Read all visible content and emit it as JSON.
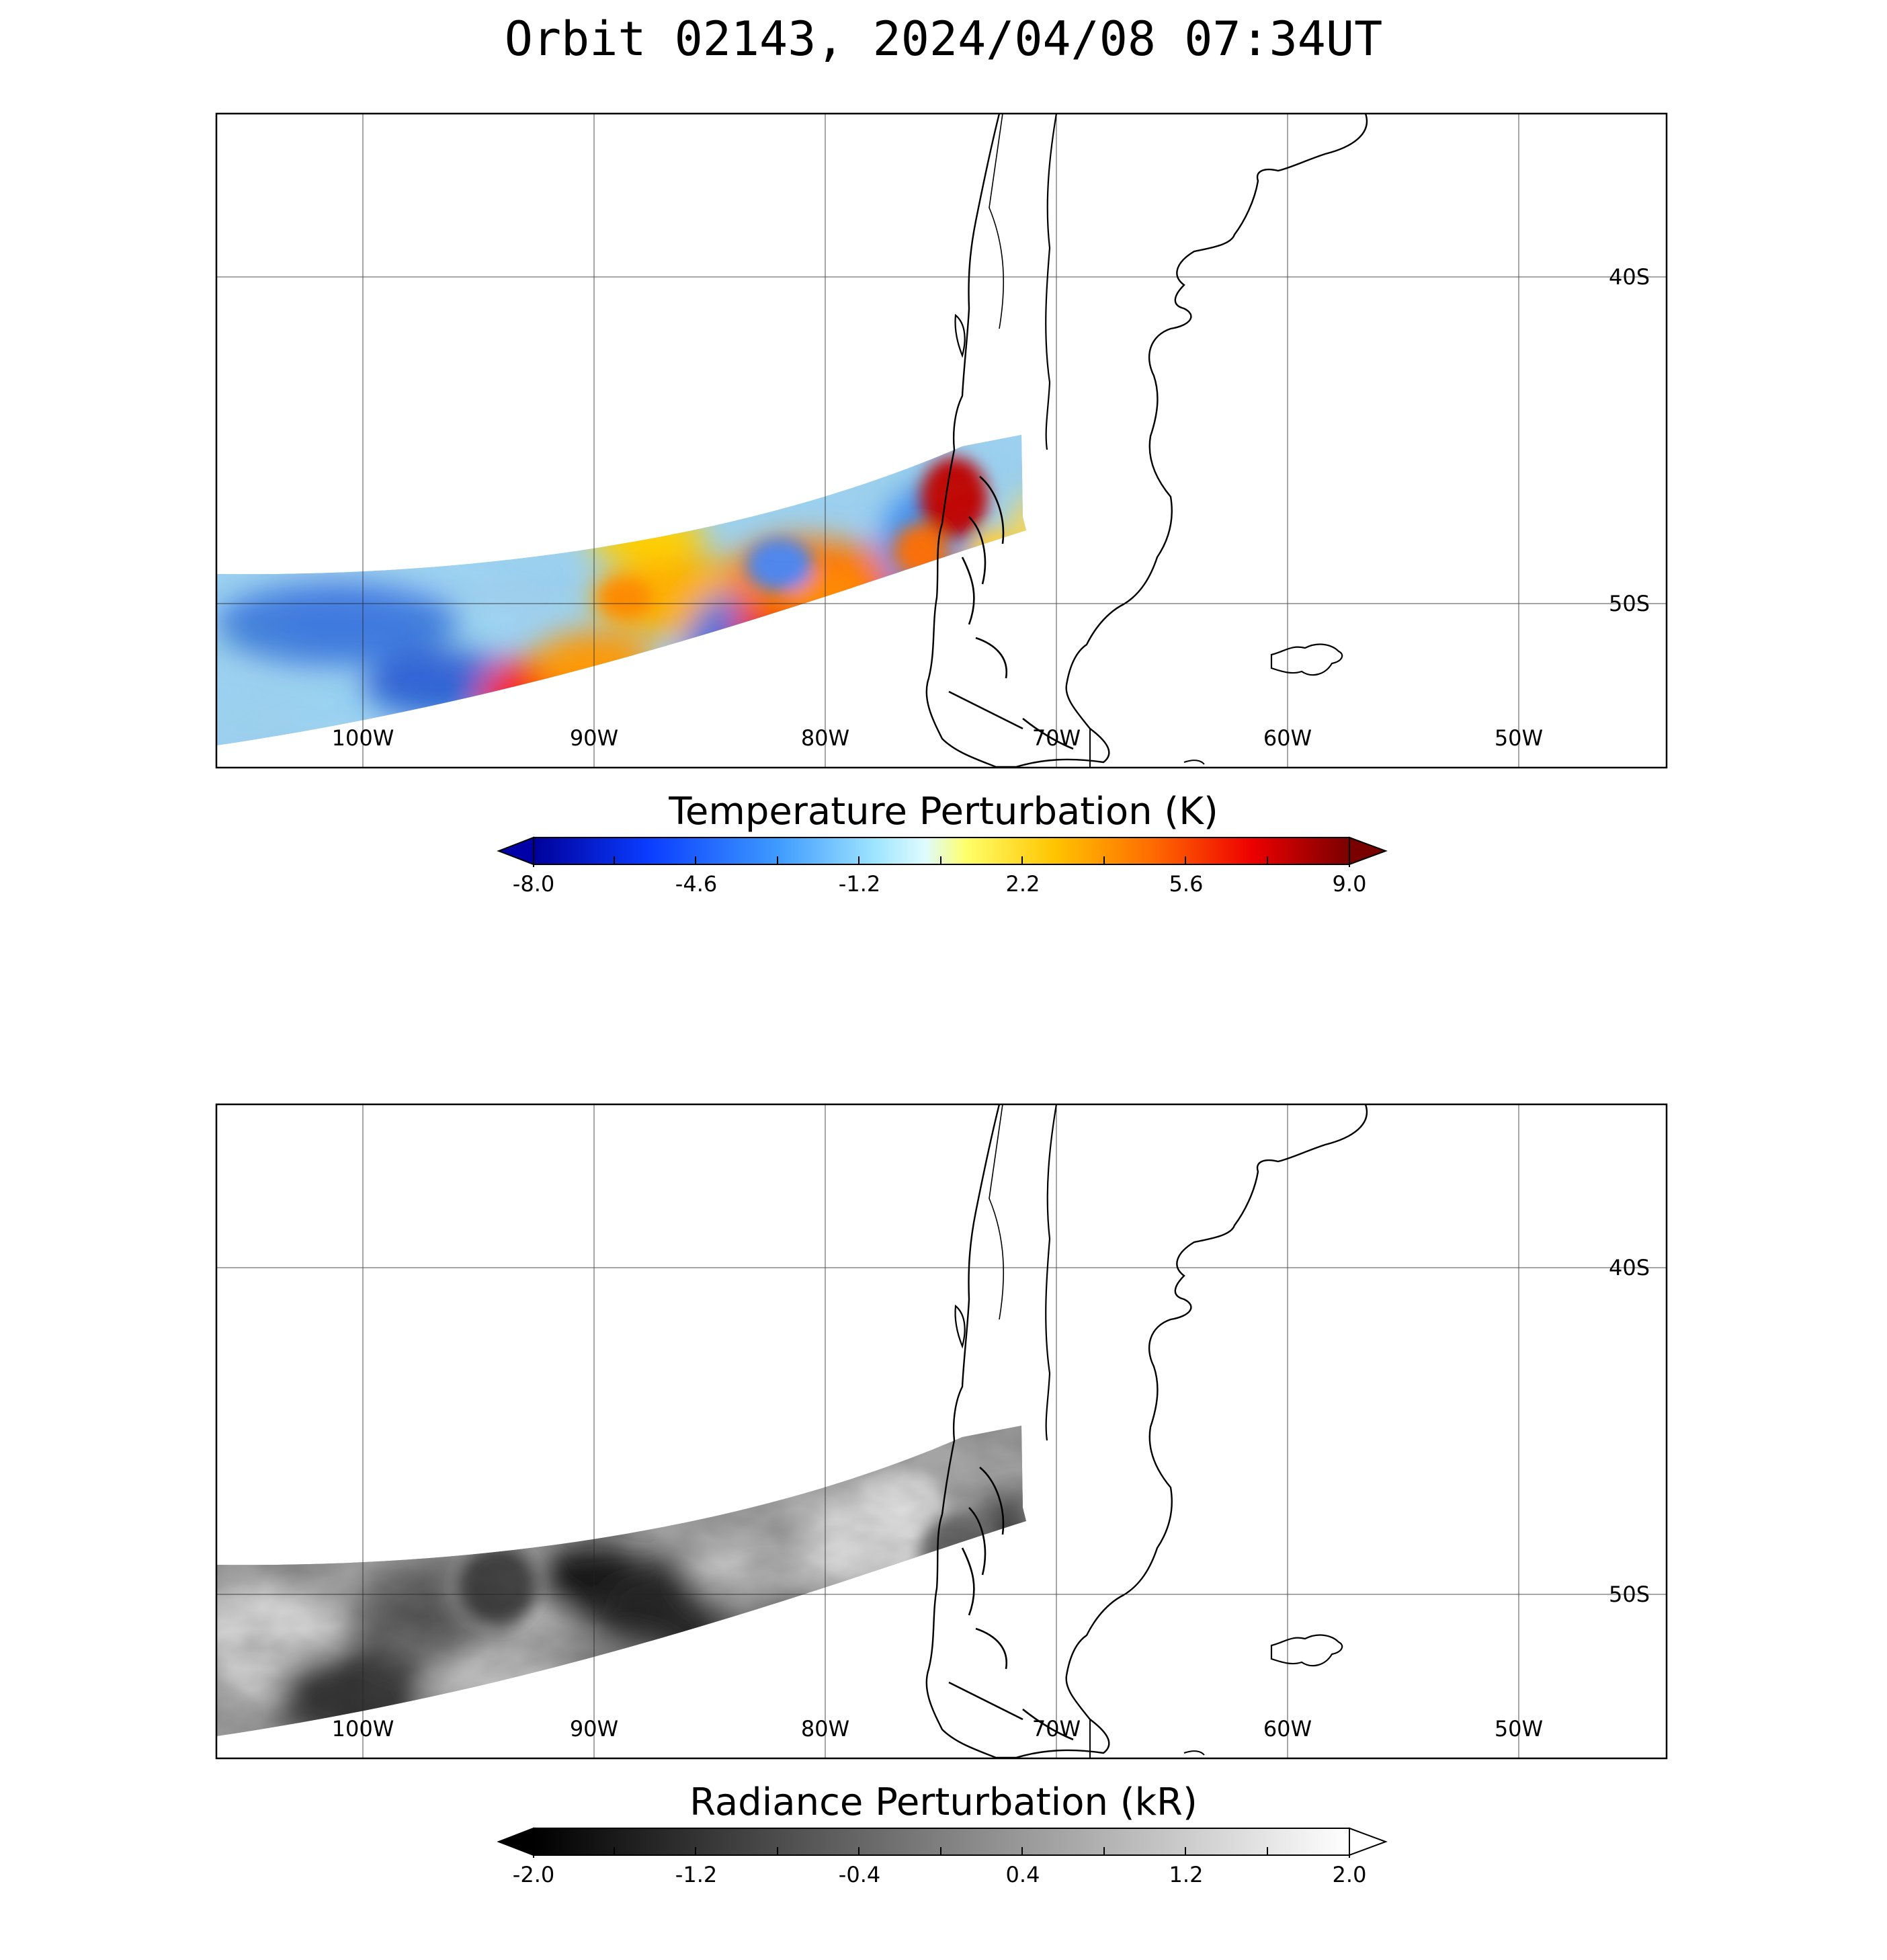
{
  "title": "Orbit 02143, 2024/04/08 07:34UT",
  "lon_ticks": [
    "100W",
    "90W",
    "80W",
    "70W",
    "60W",
    "50W"
  ],
  "lat_ticks": [
    "40S",
    "50S"
  ],
  "panels": [
    {
      "id": "temperature",
      "colorbar_label": "Temperature Perturbation (K)",
      "colorbar_ticks": [
        "-8.0",
        "-4.6",
        "-1.2",
        "2.2",
        "5.6",
        "9.0"
      ],
      "colormap": [
        "#00009a",
        "#0a3cff",
        "#3f9bff",
        "#9fe5ff",
        "#dffbff",
        "#ffff6a",
        "#ffc300",
        "#ff6a00",
        "#ee0000",
        "#7a0000"
      ]
    },
    {
      "id": "radiance",
      "colorbar_label": "Radiance Perturbation (kR)",
      "colorbar_ticks": [
        "-2.0",
        "-1.2",
        "-0.4",
        "0.4",
        "1.2",
        "2.0"
      ],
      "colormap": [
        "#000000",
        "#ffffff"
      ]
    }
  ]
}
